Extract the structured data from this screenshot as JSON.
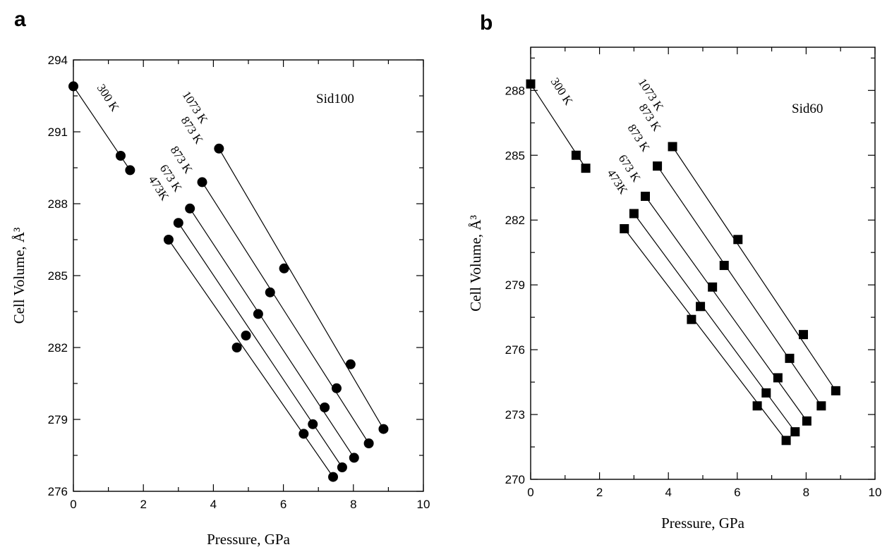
{
  "chart_data": [
    {
      "panel": "a",
      "type": "scatter",
      "sample": "Sid100",
      "xlabel": "Pressure, GPa",
      "ylabel": "Cell Volume, Å³",
      "xlim": [
        0,
        10
      ],
      "ylim": [
        276,
        294
      ],
      "xticks": [
        0,
        2,
        4,
        6,
        8,
        10
      ],
      "yticks": [
        276,
        279,
        282,
        285,
        288,
        291,
        294
      ],
      "grid": false,
      "marker": "circle",
      "series": [
        {
          "name": "300 K",
          "points": [
            [
              0,
              292.9
            ],
            [
              1.35,
              290.0
            ],
            [
              1.62,
              289.4
            ]
          ],
          "fit": [
            [
              0,
              292.9
            ],
            [
              1.62,
              289.4
            ]
          ]
        },
        {
          "name": "473K",
          "points": [
            [
              2.72,
              286.5
            ],
            [
              4.67,
              282.0
            ],
            [
              6.58,
              278.4
            ],
            [
              7.42,
              276.6
            ]
          ],
          "fit": [
            [
              2.72,
              286.5
            ],
            [
              7.42,
              276.6
            ]
          ]
        },
        {
          "name": "673 K",
          "points": [
            [
              3.0,
              287.2
            ],
            [
              4.93,
              282.5
            ],
            [
              6.84,
              278.8
            ],
            [
              7.68,
              277.0
            ]
          ],
          "fit": [
            [
              3.0,
              287.2
            ],
            [
              7.68,
              277.0
            ]
          ]
        },
        {
          "name": "873 K",
          "points": [
            [
              3.33,
              287.8
            ],
            [
              5.28,
              283.4
            ],
            [
              7.18,
              279.5
            ],
            [
              8.02,
              277.4
            ]
          ],
          "fit": [
            [
              3.33,
              287.8
            ],
            [
              8.02,
              277.4
            ]
          ]
        },
        {
          "name": "873 K",
          "points": [
            [
              3.68,
              288.9
            ],
            [
              5.62,
              284.3
            ],
            [
              7.52,
              280.3
            ],
            [
              8.44,
              278.0
            ]
          ],
          "fit": [
            [
              3.68,
              288.9
            ],
            [
              8.44,
              278.0
            ]
          ]
        },
        {
          "name": "1073 K",
          "points": [
            [
              4.16,
              290.3
            ],
            [
              6.02,
              285.3
            ],
            [
              7.92,
              281.3
            ],
            [
              8.86,
              278.6
            ]
          ],
          "fit": [
            [
              4.16,
              290.3
            ],
            [
              8.86,
              278.6
            ]
          ]
        }
      ]
    },
    {
      "panel": "b",
      "type": "scatter",
      "sample": "Sid60",
      "xlabel": "Pressure, GPa",
      "ylabel": "Cell Volume, Å³",
      "xlim": [
        0,
        10
      ],
      "ylim": [
        270,
        290
      ],
      "xticks": [
        0,
        2,
        4,
        6,
        8,
        10
      ],
      "yticks": [
        270,
        273,
        276,
        279,
        282,
        285,
        288
      ],
      "grid": false,
      "marker": "square",
      "series": [
        {
          "name": "300 K",
          "points": [
            [
              0,
              288.3
            ],
            [
              1.32,
              285.0
            ],
            [
              1.6,
              284.4
            ]
          ],
          "fit": [
            [
              0,
              288.3
            ],
            [
              1.6,
              284.4
            ]
          ]
        },
        {
          "name": "473K",
          "points": [
            [
              2.72,
              281.6
            ],
            [
              4.67,
              277.4
            ],
            [
              6.58,
              273.4
            ],
            [
              7.42,
              271.8
            ]
          ],
          "fit": [
            [
              2.72,
              281.6
            ],
            [
              7.42,
              271.8
            ]
          ]
        },
        {
          "name": "673 K",
          "points": [
            [
              3.0,
              282.3
            ],
            [
              4.93,
              278.0
            ],
            [
              6.84,
              274.0
            ],
            [
              7.68,
              272.2
            ]
          ],
          "fit": [
            [
              3.0,
              282.3
            ],
            [
              7.68,
              272.2
            ]
          ]
        },
        {
          "name": "873 K",
          "points": [
            [
              3.33,
              283.1
            ],
            [
              5.28,
              278.9
            ],
            [
              7.18,
              274.7
            ],
            [
              8.02,
              272.7
            ]
          ],
          "fit": [
            [
              3.33,
              283.1
            ],
            [
              8.02,
              272.7
            ]
          ]
        },
        {
          "name": "873 K",
          "points": [
            [
              3.68,
              284.5
            ],
            [
              5.62,
              279.9
            ],
            [
              7.52,
              275.6
            ],
            [
              8.44,
              273.4
            ]
          ],
          "fit": [
            [
              3.68,
              284.5
            ],
            [
              8.44,
              273.4
            ]
          ]
        },
        {
          "name": "1073 K",
          "points": [
            [
              4.12,
              285.4
            ],
            [
              6.02,
              281.1
            ],
            [
              7.92,
              276.7
            ],
            [
              8.86,
              274.1
            ]
          ],
          "fit": [
            [
              4.12,
              285.4
            ],
            [
              8.86,
              274.1
            ]
          ]
        }
      ]
    }
  ]
}
